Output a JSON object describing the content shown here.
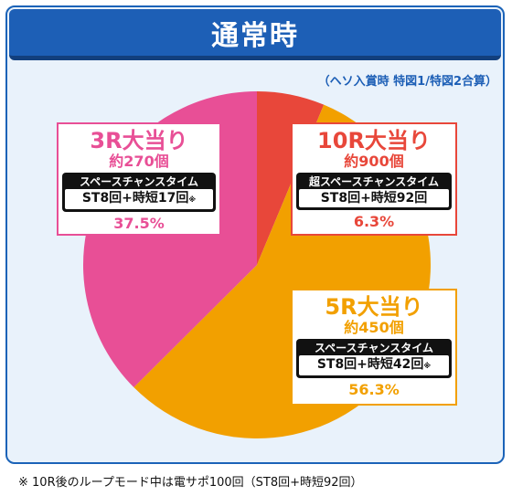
{
  "header": {
    "title": "通常時"
  },
  "subtitle": "（ヘソ入賞時 特図1/特図2合算）",
  "footnote": "※ 10R後のループモード中は電サポ100回（ST8回+時短92回）",
  "colors": {
    "title_bg": "#1d5fb6",
    "r10": "#e8473a",
    "r5": "#f2a000",
    "r3": "#e84f96"
  },
  "chart_data": {
    "type": "pie",
    "title": "",
    "slices": [
      {
        "label": "10R大当り",
        "amount": "約900個",
        "mode": "超スペースチャンスタイム",
        "detail": "ST8回+時短92回",
        "note": "",
        "percent_text": "6.3%",
        "value": 6.3,
        "color": "#e8473a"
      },
      {
        "label": "5R大当り",
        "amount": "約450個",
        "mode": "スペースチャンスタイム",
        "detail": "ST8回+時短42回",
        "note": "※",
        "percent_text": "56.3%",
        "value": 56.3,
        "color": "#f2a000"
      },
      {
        "label": "3R大当り",
        "amount": "約270個",
        "mode": "スペースチャンスタイム",
        "detail": "ST8回+時短17回",
        "note": "※",
        "percent_text": "37.5%",
        "value": 37.5,
        "color": "#e84f96"
      }
    ]
  }
}
